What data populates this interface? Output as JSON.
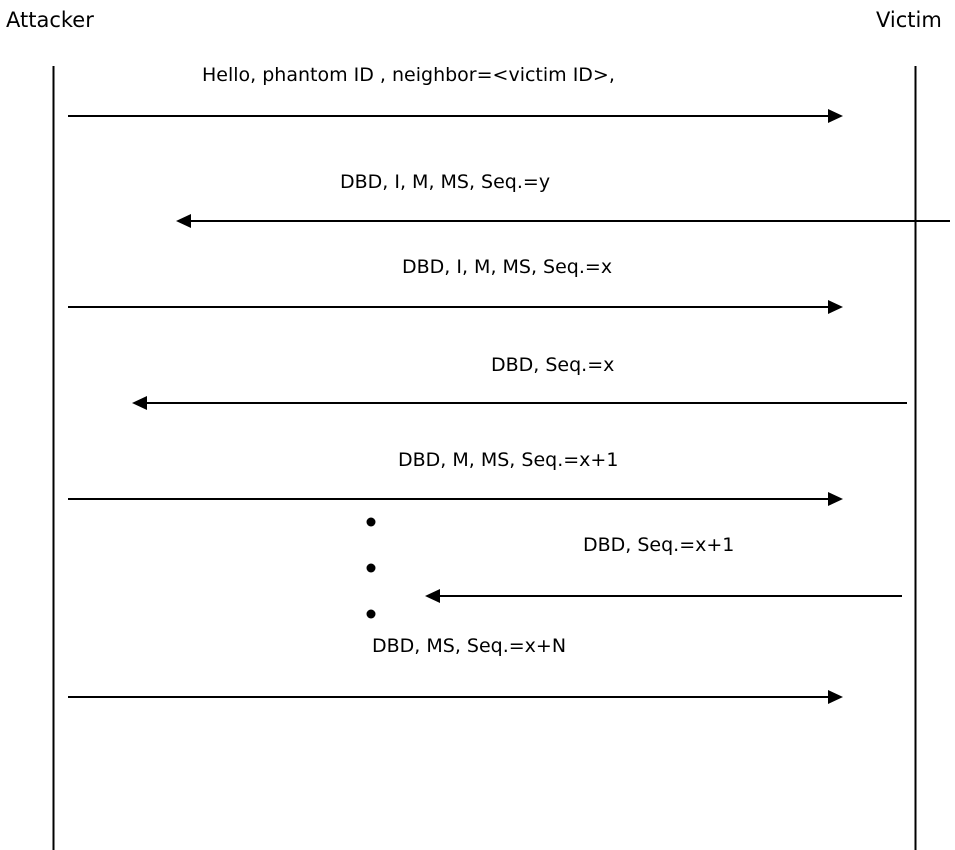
{
  "actors": {
    "left": "Attacker",
    "right": "Victim"
  },
  "messages": [
    {
      "label": "Hello, phantom ID , neighbor=<victim ID>,",
      "direction": "to-right"
    },
    {
      "label": "DBD, I, M, MS, Seq.=y",
      "direction": "to-left"
    },
    {
      "label": "DBD, I, M, MS, Seq.=x",
      "direction": "to-right"
    },
    {
      "label": "DBD, Seq.=x",
      "direction": "to-left"
    },
    {
      "label": "DBD, M, MS, Seq.=x+1",
      "direction": "to-right"
    },
    {
      "label": "DBD, Seq.=x+1",
      "direction": "to-left"
    },
    {
      "label": "DBD, MS, Seq.=x+N",
      "direction": "to-right"
    }
  ],
  "colors": {
    "line": "#000000",
    "background": "#ffffff"
  }
}
